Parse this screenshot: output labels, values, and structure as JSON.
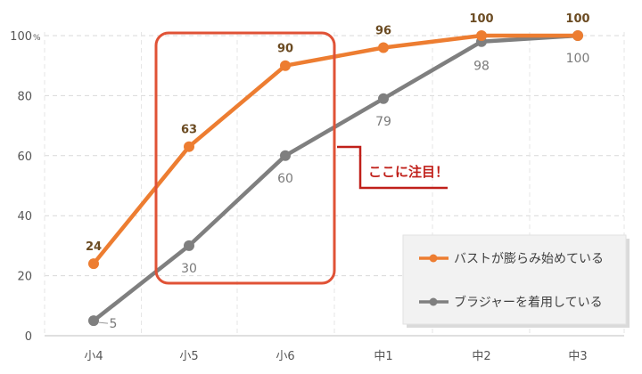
{
  "chart_data": {
    "type": "line",
    "categories": [
      "小4",
      "小5",
      "小6",
      "中1",
      "中2",
      "中3"
    ],
    "series": [
      {
        "name": "バストが膨らみ始めている",
        "color": "#ed7d31",
        "values": [
          24,
          63,
          90,
          96,
          100,
          100
        ]
      },
      {
        "name": "ブラジャーを着用している",
        "color": "#7f7f7f",
        "values": [
          5,
          30,
          60,
          79,
          98,
          100
        ]
      }
    ],
    "yticks": [
      "0",
      "20",
      "40",
      "60",
      "80",
      "100"
    ],
    "y_unit": "%",
    "ylim": [
      0,
      100
    ],
    "grid": true,
    "legend_position": "bottom-right",
    "annotation": {
      "text": "ここに注目！",
      "color": "#c0201a",
      "highlight": [
        "小5",
        "小6"
      ]
    }
  }
}
